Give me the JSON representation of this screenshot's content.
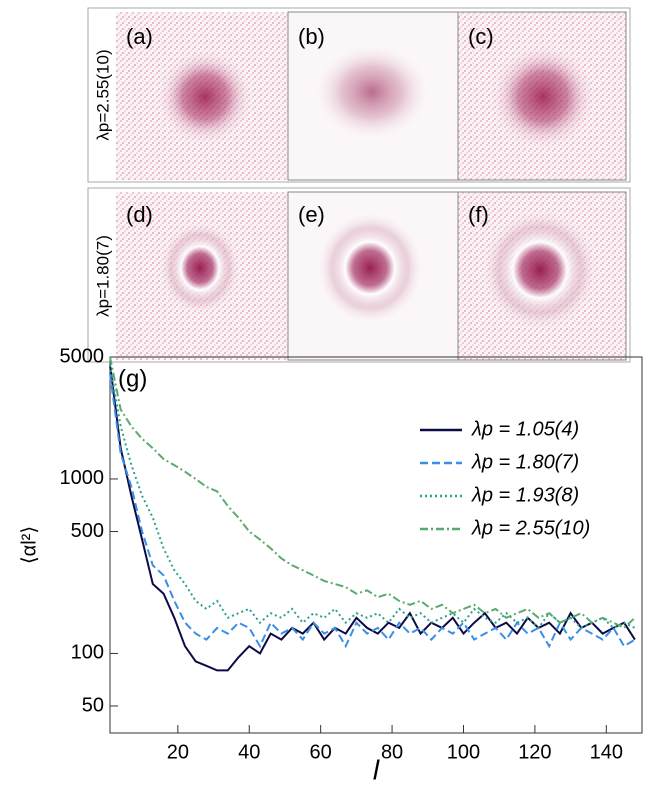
{
  "images": {
    "rows": [
      {
        "label": "λp=2.55(10)",
        "panels": [
          "(a)",
          "(b)",
          "(c)"
        ]
      },
      {
        "label": "λp=1.80(7)",
        "panels": [
          "(d)",
          "(e)",
          "(f)"
        ]
      }
    ]
  },
  "chart_data": {
    "type": "line",
    "annotation": "(g)",
    "x_label": "l",
    "y_label": "⟨αl²⟩",
    "log_y": true,
    "xlim": [
      1,
      150
    ],
    "ylim": [
      35,
      5000
    ],
    "xticks": [
      20,
      40,
      60,
      80,
      100,
      120,
      140
    ],
    "yticks": [
      50,
      100,
      500,
      1000,
      5000
    ],
    "x": [
      1,
      4,
      7,
      10,
      13,
      16,
      19,
      22,
      25,
      28,
      31,
      34,
      37,
      40,
      43,
      46,
      49,
      52,
      55,
      58,
      61,
      64,
      67,
      70,
      73,
      76,
      79,
      82,
      85,
      88,
      91,
      94,
      97,
      100,
      103,
      106,
      109,
      112,
      115,
      118,
      121,
      124,
      127,
      130,
      133,
      136,
      139,
      142,
      145,
      148
    ],
    "legend": "upper right",
    "series": [
      {
        "name": "λp = 1.05(4)",
        "color": "#0b0b45",
        "dash": "none",
        "values": [
          4500,
          1500,
          800,
          450,
          250,
          220,
          160,
          110,
          90,
          85,
          80,
          80,
          95,
          110,
          100,
          130,
          120,
          140,
          130,
          150,
          120,
          140,
          130,
          160,
          140,
          130,
          150,
          140,
          170,
          130,
          150,
          140,
          160,
          130,
          150,
          170,
          140,
          150,
          130,
          160,
          140,
          150,
          130,
          170,
          140,
          150,
          130,
          140,
          150,
          120
        ]
      },
      {
        "name": "λp = 1.80(7)",
        "color": "#3a8ee6",
        "dash": "8,4",
        "values": [
          4000,
          1400,
          900,
          500,
          320,
          280,
          200,
          150,
          130,
          120,
          140,
          130,
          150,
          140,
          110,
          150,
          130,
          140,
          120,
          150,
          130,
          140,
          110,
          150,
          130,
          140,
          120,
          150,
          130,
          140,
          120,
          140,
          130,
          150,
          120,
          130,
          140,
          120,
          150,
          130,
          140,
          110,
          150,
          120,
          140,
          130,
          120,
          140,
          110,
          120
        ]
      },
      {
        "name": "λp = 1.93(8)",
        "color": "#2aa090",
        "dash": "2,3",
        "values": [
          4500,
          2000,
          1200,
          800,
          600,
          400,
          300,
          250,
          200,
          180,
          200,
          160,
          170,
          180,
          150,
          170,
          160,
          180,
          150,
          170,
          160,
          180,
          150,
          170,
          160,
          170,
          150,
          180,
          160,
          170,
          150,
          160,
          170,
          150,
          180,
          160,
          150,
          170,
          150,
          160,
          140,
          170,
          150,
          160,
          140,
          150,
          160,
          140,
          150,
          140
        ]
      },
      {
        "name": "λp = 2.55(10)",
        "color": "#5aaa70",
        "dash": "8,3,2,3",
        "values": [
          5000,
          2500,
          2000,
          1700,
          1500,
          1300,
          1200,
          1100,
          1000,
          900,
          850,
          700,
          600,
          500,
          450,
          400,
          350,
          320,
          300,
          280,
          260,
          250,
          240,
          220,
          230,
          210,
          220,
          200,
          190,
          200,
          180,
          190,
          170,
          180,
          190,
          170,
          180,
          160,
          170,
          180,
          160,
          170,
          150,
          160,
          170,
          150,
          160,
          150,
          140,
          160
        ]
      }
    ]
  }
}
